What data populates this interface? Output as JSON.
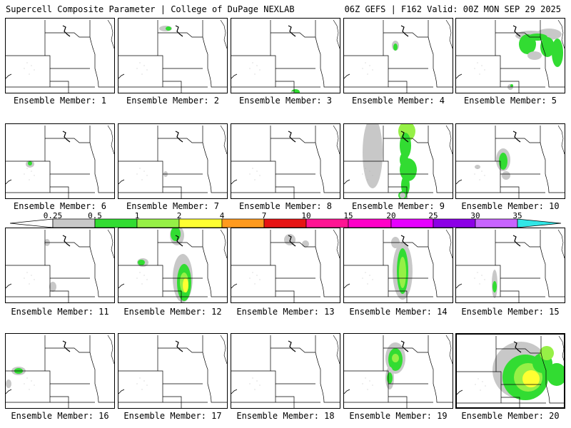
{
  "header": {
    "left": "Supercell Composite Parameter | College of DuPage NEXLAB",
    "right": "06Z GEFS | F162 Valid: 00Z MON SEP 29 2025"
  },
  "colorbar": {
    "labels": [
      "0.25",
      "0.5",
      "1",
      "2",
      "4",
      "7",
      "10",
      "15",
      "20",
      "25",
      "30",
      "35"
    ],
    "colors": [
      "#c8c8c8",
      "#32dc32",
      "#96f046",
      "#ffff32",
      "#ff9a1e",
      "#e61414",
      "#ff1493",
      "#ff00c8",
      "#e600ff",
      "#8c00e6",
      "#c864ff",
      "#32e6e6"
    ]
  },
  "members": [
    {
      "label": "Ensemble Member: 1"
    },
    {
      "label": "Ensemble Member: 2"
    },
    {
      "label": "Ensemble Member: 3"
    },
    {
      "label": "Ensemble Member: 4"
    },
    {
      "label": "Ensemble Member: 5"
    },
    {
      "label": "Ensemble Member: 6"
    },
    {
      "label": "Ensemble Member: 7"
    },
    {
      "label": "Ensemble Member: 8"
    },
    {
      "label": "Ensemble Member: 9"
    },
    {
      "label": "Ensemble Member: 10"
    },
    {
      "label": "Ensemble Member: 11"
    },
    {
      "label": "Ensemble Member: 12"
    },
    {
      "label": "Ensemble Member: 13"
    },
    {
      "label": "Ensemble Member: 14"
    },
    {
      "label": "Ensemble Member: 15"
    },
    {
      "label": "Ensemble Member: 16"
    },
    {
      "label": "Ensemble Member: 17"
    },
    {
      "label": "Ensemble Member: 18"
    },
    {
      "label": "Ensemble Member: 19"
    },
    {
      "label": "Ensemble Member: 20"
    }
  ],
  "legend_colors": {
    "gray": "#c8c8c8",
    "green": "#32dc32",
    "lightgreen": "#96f046",
    "yellow": "#ffff32"
  }
}
